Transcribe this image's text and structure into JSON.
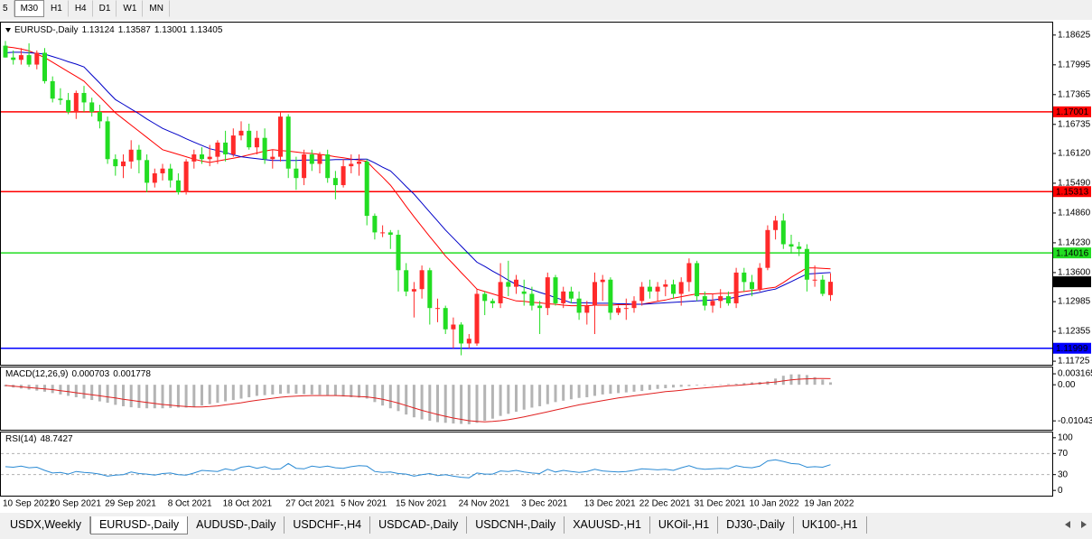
{
  "toolbar": {
    "timeframes": [
      "5",
      "M30",
      "H1",
      "H4",
      "D1",
      "W1",
      "MN"
    ],
    "active": 1
  },
  "tabs": {
    "items": [
      "USDX,Weekly",
      "EURUSD-,Daily",
      "AUDUSD-,Daily",
      "USDCHF-,H4",
      "USDCAD-,Daily",
      "USDCNH-,Daily",
      "XAUUSD-,H1",
      "UKOil-,H1",
      "DJ30-,Daily",
      "UK100-,H1"
    ],
    "active": 1
  },
  "chart_data": [
    {
      "type": "candlestick",
      "title": "EURUSD-,Daily",
      "up_color": "#ff2a2a",
      "down_color": "#22dd22",
      "x": [
        "10 Sep 2021",
        null,
        null,
        null,
        null,
        null,
        "20 Sep 2021",
        null,
        null,
        null,
        null,
        null,
        null,
        "29 Sep 2021",
        null,
        null,
        null,
        null,
        null,
        null,
        null,
        "8 Oct 2021",
        null,
        null,
        null,
        null,
        null,
        null,
        "18 Oct 2021",
        null,
        null,
        null,
        null,
        null,
        null,
        null,
        "27 Oct 2021",
        null,
        null,
        null,
        null,
        null,
        null,
        "5 Nov 2021",
        null,
        null,
        null,
        null,
        null,
        null,
        "15 Nov 2021",
        null,
        null,
        null,
        null,
        null,
        null,
        null,
        "24 Nov 2021",
        null,
        null,
        null,
        null,
        null,
        null,
        null,
        "3 Dec 2021",
        null,
        null,
        null,
        null,
        null,
        null,
        null,
        "13 Dec 2021",
        null,
        null,
        null,
        null,
        null,
        null,
        "22 Dec 2021",
        null,
        null,
        null,
        null,
        null,
        null,
        "31 Dec 2021",
        null,
        null,
        null,
        null,
        null,
        null,
        "10 Jan 2022",
        null,
        null,
        null,
        null,
        null,
        null,
        "19 Jan 2022",
        null,
        null,
        null
      ],
      "open": [
        1.184,
        1.1815,
        1.181,
        1.182,
        1.18,
        1.1825,
        1.1765,
        1.1728,
        1.1725,
        1.17,
        1.174,
        1.172,
        1.17,
        1.168,
        1.16,
        1.1585,
        1.1595,
        1.162,
        1.1598,
        1.155,
        1.157,
        1.158,
        1.1555,
        1.153,
        1.1595,
        1.161,
        1.16,
        1.1605,
        1.1635,
        1.161,
        1.165,
        1.166,
        1.1625,
        1.1645,
        1.16,
        1.1605,
        1.169,
        1.158,
        1.156,
        1.161,
        1.159,
        1.161,
        1.156,
        1.1545,
        1.1585,
        1.159,
        1.1595,
        1.148,
        1.1445,
        1.1445,
        1.144,
        1.1365,
        1.132,
        1.1325,
        1.1365,
        1.1285,
        1.1285,
        1.124,
        1.125,
        1.121,
        1.121,
        1.1315,
        1.13,
        1.1295,
        1.134,
        1.133,
        1.132,
        1.1315,
        1.129,
        1.1285,
        1.135,
        1.1295,
        1.132,
        1.1305,
        1.1275,
        1.129,
        1.134,
        1.1345,
        1.1275,
        1.1285,
        1.1285,
        1.13,
        1.133,
        1.132,
        1.133,
        1.1335,
        1.1315,
        1.134,
        1.138,
        1.131,
        1.129,
        1.13,
        1.131,
        1.1295,
        1.136,
        1.134,
        1.1325,
        1.137,
        1.145,
        1.147,
        1.142,
        1.1415,
        1.141,
        1.1345,
        1.1345,
        1.13124
      ],
      "high": [
        1.185,
        1.183,
        1.1835,
        1.1845,
        1.183,
        1.1835,
        1.1775,
        1.175,
        1.174,
        1.1745,
        1.1755,
        1.173,
        1.1715,
        1.169,
        1.161,
        1.161,
        1.164,
        1.163,
        1.161,
        1.158,
        1.159,
        1.159,
        1.157,
        1.16,
        1.162,
        1.1625,
        1.163,
        1.164,
        1.166,
        1.1665,
        1.168,
        1.1675,
        1.166,
        1.1665,
        1.162,
        1.17,
        1.1695,
        1.1605,
        1.162,
        1.162,
        1.1615,
        1.162,
        1.1575,
        1.16,
        1.161,
        1.161,
        1.16,
        1.1485,
        1.146,
        1.145,
        1.145,
        1.138,
        1.134,
        1.1375,
        1.137,
        1.1305,
        1.129,
        1.1265,
        1.1255,
        1.123,
        1.1325,
        1.132,
        1.1305,
        1.138,
        1.1385,
        1.1355,
        1.1345,
        1.133,
        1.13,
        1.136,
        1.1355,
        1.133,
        1.133,
        1.132,
        1.13,
        1.136,
        1.1355,
        1.135,
        1.129,
        1.1305,
        1.131,
        1.134,
        1.1345,
        1.134,
        1.1345,
        1.1345,
        1.135,
        1.139,
        1.1385,
        1.132,
        1.1315,
        1.1325,
        1.132,
        1.137,
        1.137,
        1.1355,
        1.138,
        1.146,
        1.148,
        1.1485,
        1.144,
        1.1425,
        1.142,
        1.1375,
        1.1355,
        1.13587
      ],
      "low": [
        1.1815,
        1.18,
        1.18,
        1.1795,
        1.179,
        1.176,
        1.172,
        1.1715,
        1.1695,
        1.1685,
        1.17,
        1.169,
        1.1665,
        1.159,
        1.1565,
        1.156,
        1.158,
        1.157,
        1.153,
        1.154,
        1.1555,
        1.154,
        1.1525,
        1.1525,
        1.158,
        1.159,
        1.1585,
        1.159,
        1.1595,
        1.1605,
        1.164,
        1.162,
        1.161,
        1.159,
        1.158,
        1.1595,
        1.156,
        1.1535,
        1.1545,
        1.1575,
        1.157,
        1.155,
        1.1515,
        1.154,
        1.157,
        1.1565,
        1.146,
        1.143,
        1.1435,
        1.141,
        1.132,
        1.131,
        1.1265,
        1.1305,
        1.125,
        1.1255,
        1.123,
        1.12,
        1.1185,
        1.12,
        1.1205,
        1.127,
        1.1285,
        1.1285,
        1.131,
        1.1315,
        1.129,
        1.128,
        1.123,
        1.127,
        1.129,
        1.1285,
        1.1295,
        1.126,
        1.125,
        1.123,
        1.13,
        1.126,
        1.127,
        1.126,
        1.1275,
        1.129,
        1.1305,
        1.13,
        1.131,
        1.1305,
        1.129,
        1.132,
        1.13,
        1.128,
        1.1275,
        1.1285,
        1.129,
        1.1285,
        1.132,
        1.131,
        1.132,
        1.1365,
        1.143,
        1.141,
        1.14,
        1.1395,
        1.132,
        1.133,
        1.131,
        1.13001
      ],
      "close": [
        1.1815,
        1.181,
        1.182,
        1.18,
        1.1825,
        1.1765,
        1.1728,
        1.1725,
        1.17,
        1.174,
        1.172,
        1.17,
        1.168,
        1.16,
        1.1585,
        1.1595,
        1.162,
        1.1598,
        1.155,
        1.157,
        1.158,
        1.1555,
        1.153,
        1.1595,
        1.161,
        1.16,
        1.1605,
        1.1635,
        1.161,
        1.165,
        1.166,
        1.1625,
        1.1645,
        1.16,
        1.1605,
        1.169,
        1.158,
        1.156,
        1.161,
        1.159,
        1.161,
        1.156,
        1.1545,
        1.1585,
        1.159,
        1.1595,
        1.148,
        1.1445,
        1.1445,
        1.144,
        1.1365,
        1.132,
        1.1325,
        1.1365,
        1.1285,
        1.1285,
        1.124,
        1.125,
        1.121,
        1.122,
        1.1315,
        1.13,
        1.1295,
        1.134,
        1.133,
        1.1345,
        1.1315,
        1.129,
        1.1285,
        1.135,
        1.1295,
        1.132,
        1.1305,
        1.1275,
        1.129,
        1.134,
        1.1345,
        1.1275,
        1.1285,
        1.1285,
        1.13,
        1.133,
        1.132,
        1.133,
        1.1335,
        1.1315,
        1.134,
        1.138,
        1.131,
        1.129,
        1.13,
        1.131,
        1.1295,
        1.136,
        1.134,
        1.1325,
        1.137,
        1.145,
        1.147,
        1.142,
        1.1415,
        1.141,
        1.1345,
        1.1345,
        1.1315,
        1.13405
      ],
      "ma": [
        {
          "color": "#ff0000",
          "values": [
            1.1838,
            1.1836,
            1.1833,
            1.1829,
            1.1822,
            1.1815,
            1.1805,
            1.1795,
            1.1785,
            1.1775,
            1.1765,
            1.1748,
            1.1732,
            1.1715,
            1.1698,
            1.1685,
            1.1672,
            1.1659,
            1.1646,
            1.1633,
            1.162,
            1.1615,
            1.161,
            1.1605,
            1.16,
            1.1596,
            1.1593,
            1.1596,
            1.1599,
            1.1602,
            1.1605,
            1.1609,
            1.1613,
            1.1617,
            1.162,
            1.1618,
            1.1617,
            1.1615,
            1.1613,
            1.1612,
            1.161,
            1.1608,
            1.1605,
            1.1603,
            1.16,
            1.1598,
            1.1595,
            1.1578,
            1.1562,
            1.1545,
            1.1523,
            1.15,
            1.1478,
            1.1457,
            1.1436,
            1.1416,
            1.1395,
            1.1378,
            1.136,
            1.1343,
            1.1325,
            1.132,
            1.1315,
            1.131,
            1.1305,
            1.13,
            1.1299,
            1.1297,
            1.1296,
            1.1294,
            1.1293,
            1.1291,
            1.129,
            1.129,
            1.129,
            1.1291,
            1.1291,
            1.1291,
            1.1292,
            1.1292,
            1.1293,
            1.1293,
            1.1296,
            1.1299,
            1.1302,
            1.1306,
            1.1309,
            1.1312,
            1.1315,
            1.1315,
            1.1315,
            1.1316,
            1.1316,
            1.1318,
            1.132,
            1.1322,
            1.1324,
            1.1327,
            1.1329,
            1.1339,
            1.135,
            1.136,
            1.137,
            1.137,
            1.1369,
            1.1368
          ]
        },
        {
          "color": "#0000c8",
          "values": [
            1.1825,
            1.1826,
            1.1826,
            1.1825,
            1.1824,
            1.1822,
            1.1817,
            1.1812,
            1.1806,
            1.1801,
            1.1795,
            1.1778,
            1.1761,
            1.1743,
            1.1726,
            1.1716,
            1.1706,
            1.1696,
            1.1685,
            1.1675,
            1.1665,
            1.1658,
            1.1651,
            1.1643,
            1.1636,
            1.1629,
            1.1622,
            1.1618,
            1.1614,
            1.1609,
            1.1605,
            1.1603,
            1.1601,
            1.1599,
            1.1597,
            1.1597,
            1.1597,
            1.1597,
            1.1598,
            1.1598,
            1.1598,
            1.1598,
            1.1599,
            1.1599,
            1.1599,
            1.16,
            1.16,
            1.1592,
            1.1583,
            1.1575,
            1.1559,
            1.1542,
            1.1526,
            1.1507,
            1.1488,
            1.1469,
            1.145,
            1.1433,
            1.1416,
            1.1399,
            1.1382,
            1.1373,
            1.1363,
            1.1354,
            1.1344,
            1.1335,
            1.1329,
            1.1324,
            1.1318,
            1.1313,
            1.1307,
            1.1302,
            1.1296,
            1.1296,
            1.1296,
            1.1295,
            1.1295,
            1.1295,
            1.1294,
            1.1294,
            1.1293,
            1.1293,
            1.1294,
            1.1295,
            1.1296,
            1.1297,
            1.1298,
            1.1299,
            1.13,
            1.1301,
            1.1302,
            1.1304,
            1.1305,
            1.1308,
            1.1312,
            1.1315,
            1.1318,
            1.1322,
            1.1325,
            1.1333,
            1.1341,
            1.1349,
            1.1357,
            1.1358,
            1.1359,
            1.136
          ]
        }
      ],
      "levels": [
        {
          "value": 1.17001,
          "color": "#ff0000"
        },
        {
          "value": 1.15313,
          "color": "#ff0000"
        },
        {
          "value": 1.14016,
          "color": "#22dd22"
        },
        {
          "value": 1.11999,
          "color": "#0000ff"
        }
      ],
      "ylim": [
        1.1165,
        1.1887
      ],
      "yticks": [
        1.18625,
        1.17995,
        1.17365,
        1.16735,
        {
          "value": 1.1612,
          "label": "1.16120"
        },
        {
          "value": 1.1549,
          "label": "1.15490"
        },
        {
          "value": 1.1486,
          "label": "1.14860"
        },
        {
          "value": 1.1423,
          "label": "1.14230"
        },
        {
          "value": 1.136,
          "label": "1.13600"
        },
        1.12985,
        1.12355,
        1.11725
      ]
    },
    {
      "type": "macd",
      "title": "MACD(12,26,9)",
      "color": "#b4b4b4",
      "signal_color": "#e02020",
      "values": [
        -0.0005,
        -0.0008,
        -0.0011,
        -0.0014,
        -0.0017,
        -0.002,
        -0.0024,
        -0.0028,
        -0.0032,
        -0.0036,
        -0.004,
        -0.0044,
        -0.0048,
        -0.0052,
        -0.0058,
        -0.0062,
        -0.0065,
        -0.0067,
        -0.0068,
        -0.0068,
        -0.0068,
        -0.0067,
        -0.0066,
        -0.0066,
        -0.0064,
        -0.006,
        -0.0056,
        -0.0052,
        -0.0048,
        -0.0044,
        -0.004,
        -0.0036,
        -0.0032,
        -0.003,
        -0.0028,
        -0.0026,
        -0.0025,
        -0.0026,
        -0.0027,
        -0.0028,
        -0.0029,
        -0.003,
        -0.0032,
        -0.0034,
        -0.0036,
        -0.0037,
        -0.004,
        -0.005,
        -0.006,
        -0.0068,
        -0.0076,
        -0.0086,
        -0.0094,
        -0.01,
        -0.0104,
        -0.0108,
        -0.011,
        -0.0112,
        -0.0113,
        -0.0114,
        -0.011,
        -0.0104,
        -0.0098,
        -0.009,
        -0.0084,
        -0.0078,
        -0.0072,
        -0.0066,
        -0.0062,
        -0.0056,
        -0.005,
        -0.0046,
        -0.0042,
        -0.0038,
        -0.0036,
        -0.0032,
        -0.0028,
        -0.0026,
        -0.0024,
        -0.0022,
        -0.002,
        -0.0018,
        -0.0015,
        -0.0012,
        -0.001,
        -0.0008,
        -0.0006,
        -0.0004,
        -0.0002,
        -0.0001,
        0.0,
        0.0001,
        0.0002,
        0.0003,
        0.0005,
        0.0007,
        0.0008,
        0.001,
        0.0018,
        0.0026,
        0.003,
        0.003,
        0.0028,
        0.0022,
        0.0015,
        0.000703
      ],
      "signal": [
        -0.0002,
        -0.0004,
        -0.0006,
        -0.0008,
        -0.001,
        -0.0012,
        -0.0014,
        -0.0017,
        -0.002,
        -0.0023,
        -0.0026,
        -0.0029,
        -0.0032,
        -0.0035,
        -0.0038,
        -0.0042,
        -0.0045,
        -0.0048,
        -0.0051,
        -0.0054,
        -0.0057,
        -0.0059,
        -0.0061,
        -0.0063,
        -0.0064,
        -0.0064,
        -0.0063,
        -0.0061,
        -0.0058,
        -0.0055,
        -0.0052,
        -0.0048,
        -0.0045,
        -0.0042,
        -0.0039,
        -0.0036,
        -0.0034,
        -0.0033,
        -0.0032,
        -0.0031,
        -0.0031,
        -0.0031,
        -0.0031,
        -0.0032,
        -0.0033,
        -0.0034,
        -0.0035,
        -0.0038,
        -0.0042,
        -0.0047,
        -0.0053,
        -0.006,
        -0.0067,
        -0.0074,
        -0.008,
        -0.0086,
        -0.0091,
        -0.0096,
        -0.01,
        -0.0104,
        -0.0106,
        -0.0107,
        -0.0106,
        -0.0104,
        -0.0101,
        -0.0097,
        -0.0093,
        -0.0088,
        -0.0083,
        -0.0078,
        -0.0073,
        -0.0068,
        -0.0063,
        -0.0058,
        -0.0054,
        -0.005,
        -0.0046,
        -0.0042,
        -0.0038,
        -0.0035,
        -0.0032,
        -0.0029,
        -0.0026,
        -0.0023,
        -0.002,
        -0.0018,
        -0.0016,
        -0.0013,
        -0.0011,
        -0.0009,
        -0.0007,
        -0.0005,
        -0.0003,
        -0.0002,
        0.0,
        0.0002,
        0.0004,
        0.0006,
        0.0008,
        0.0011,
        0.0014,
        0.0016,
        0.0017,
        0.0018,
        0.0018,
        0.001778
      ],
      "ylim": [
        -0.013,
        0.005
      ],
      "yticks": [
        0.003165,
        {
          "value": 0,
          "label": "0.00"
        },
        -0.010431
      ]
    },
    {
      "type": "line",
      "title": "RSI(14)",
      "color": "#2a8ad4",
      "values": [
        45,
        44,
        46,
        43,
        44,
        38,
        33,
        34,
        31,
        36,
        34,
        33,
        31,
        27,
        29,
        30,
        35,
        32,
        31,
        29,
        32,
        33,
        30,
        29,
        33,
        38,
        37,
        36,
        41,
        38,
        44,
        46,
        42,
        45,
        40,
        41,
        51,
        42,
        41,
        46,
        44,
        46,
        43,
        42,
        45,
        47,
        46,
        36,
        34,
        35,
        32,
        31,
        27,
        30,
        32,
        28,
        30,
        27,
        25,
        24,
        33,
        31,
        31,
        37,
        36,
        38,
        35,
        33,
        32,
        40,
        35,
        38,
        36,
        34,
        36,
        40,
        37,
        36,
        35,
        36,
        38,
        41,
        40,
        39,
        40,
        38,
        43,
        47,
        42,
        40,
        41,
        42,
        41,
        47,
        44,
        43,
        46,
        56,
        58,
        55,
        51,
        50,
        44,
        45,
        44,
        48.7427
      ],
      "levels": [
        30,
        70
      ],
      "ylim": [
        -10,
        110
      ],
      "yticks": [
        0,
        30,
        70,
        100
      ]
    }
  ]
}
